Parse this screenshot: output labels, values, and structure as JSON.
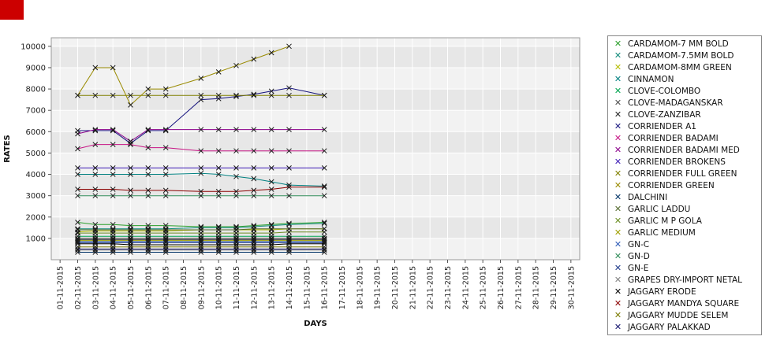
{
  "red_marker": {
    "color": "#cc0000"
  },
  "chart_data": {
    "type": "line",
    "title": "",
    "xlabel": "DAYS",
    "ylabel": "RATES",
    "ylim": [
      0,
      10400
    ],
    "yticks": [
      1000,
      2000,
      3000,
      4000,
      5000,
      6000,
      7000,
      8000,
      9000,
      10000
    ],
    "grid": true,
    "legend_position": "right",
    "marker": "x",
    "x_ticks": [
      "01-11-2015",
      "02-11-2015",
      "03-11-2015",
      "04-11-2015",
      "05-11-2015",
      "06-11-2015",
      "07-11-2015",
      "08-11-2015",
      "09-11-2015",
      "10-11-2015",
      "11-11-2015",
      "12-11-2015",
      "13-11-2015",
      "14-11-2015",
      "15-11-2015",
      "16-11-2015",
      "17-11-2015",
      "18-11-2015",
      "19-11-2015",
      "20-11-2015",
      "21-11-2015",
      "22-11-2015",
      "23-11-2015",
      "24-11-2015",
      "25-11-2015",
      "26-11-2015",
      "27-11-2015",
      "28-11-2015",
      "29-11-2015",
      "30-11-2015"
    ],
    "data_dates": [
      "02-11-2015",
      "03-11-2015",
      "04-11-2015",
      "05-11-2015",
      "06-11-2015",
      "07-11-2015",
      "09-11-2015",
      "10-11-2015",
      "11-11-2015",
      "12-11-2015",
      "13-11-2015",
      "14-11-2015",
      "16-11-2015"
    ],
    "series": [
      {
        "name": "CARDAMOM-7 MM BOLD",
        "color": "#2ca02c",
        "values": [
          1750,
          1650,
          1650,
          1600,
          1600,
          1600,
          1550,
          1550,
          1550,
          1600,
          1650,
          1700,
          1750
        ]
      },
      {
        "name": "CARDAMOM-7.5MM BOLD",
        "color": "#0f8a7a",
        "values": [
          1450,
          1450,
          1450,
          1450,
          1450,
          1450,
          1500,
          1500,
          1500,
          1550,
          1600,
          1650,
          1700
        ]
      },
      {
        "name": "CARDAMOM-8MM GREEN",
        "color": "#b5bd00",
        "values": [
          1300,
          1350,
          1350,
          1350,
          1350,
          1350,
          1400,
          1400,
          1400,
          1400,
          1400,
          1450,
          1450
        ]
      },
      {
        "name": "CINNAMON",
        "color": "#008080",
        "values": [
          4000,
          4000,
          4000,
          4000,
          4000,
          4000,
          4050,
          4000,
          3900,
          3800,
          3650,
          3500,
          3450
        ]
      },
      {
        "name": "CLOVE-COLOMBO",
        "color": "#00a550",
        "values": [
          1100,
          1100,
          1100,
          1100,
          1100,
          1100,
          1100,
          1100,
          1100,
          1100,
          1100,
          1100,
          1100
        ]
      },
      {
        "name": "CLOVE-MADAGANSKAR",
        "color": "#4d4d4d",
        "values": [
          1000,
          1000,
          1000,
          1000,
          1000,
          1000,
          1000,
          1000,
          1000,
          1000,
          1000,
          1000,
          1000
        ]
      },
      {
        "name": "CLOVE-ZANZIBAR",
        "color": "#262626",
        "values": [
          950,
          950,
          950,
          950,
          950,
          950,
          950,
          950,
          950,
          950,
          950,
          950,
          950
        ]
      },
      {
        "name": "CORRIENDER A1",
        "color": "#16137e",
        "values": [
          6050,
          6050,
          6050,
          5450,
          6050,
          6050,
          7500,
          7550,
          7650,
          7750,
          7900,
          8050,
          7700
        ]
      },
      {
        "name": "CORRIENDER BADAMI",
        "color": "#c71585",
        "values": [
          5200,
          5400,
          5400,
          5400,
          5250,
          5250,
          5100,
          5100,
          5100,
          5100,
          5100,
          5100,
          5100
        ]
      },
      {
        "name": "CORRIENDER BADAMI MED",
        "color": "#8b008b",
        "values": [
          5900,
          6100,
          6100,
          5550,
          6100,
          6100,
          6100,
          6100,
          6100,
          6100,
          6100,
          6100,
          6100
        ]
      },
      {
        "name": "CORRIENDER BROKENS",
        "color": "#3c1ab5",
        "values": [
          4300,
          4300,
          4300,
          4300,
          4300,
          4300,
          4300,
          4300,
          4300,
          4300,
          4300,
          4300,
          4300
        ]
      },
      {
        "name": "CORRIENDER FULL GREEN",
        "color": "#808000",
        "values": [
          7700,
          7700,
          7700,
          7700,
          7700,
          7700,
          7700,
          7700,
          7700,
          7700,
          7700,
          7700,
          7700
        ]
      },
      {
        "name": "CORRIENDER GREEN",
        "color": "#998a00",
        "values": [
          7700,
          9000,
          9000,
          7250,
          8000,
          8000,
          8500,
          8800,
          9100,
          9400,
          9700,
          10000,
          null
        ]
      },
      {
        "name": "DALCHINI",
        "color": "#003366",
        "values": [
          350,
          350,
          350,
          350,
          350,
          350,
          350,
          350,
          350,
          350,
          350,
          350,
          350
        ]
      },
      {
        "name": "GARLIC LADDU",
        "color": "#556b2f",
        "values": [
          1400,
          1400,
          1400,
          1400,
          1400,
          1400,
          1400,
          1400,
          1400,
          1450,
          1450,
          1450,
          1450
        ]
      },
      {
        "name": "GARLIC M P GOLA",
        "color": "#6b8e23",
        "values": [
          1250,
          1250,
          1250,
          1250,
          1250,
          1250,
          1250,
          1250,
          1250,
          1250,
          1250,
          1300,
          1300
        ]
      },
      {
        "name": "GARLIC MEDIUM",
        "color": "#a0a000",
        "values": [
          900,
          900,
          900,
          900,
          900,
          900,
          900,
          900,
          900,
          900,
          900,
          900,
          900
        ]
      },
      {
        "name": "GN-C",
        "color": "#2e5cb8",
        "values": [
          850,
          850,
          850,
          850,
          850,
          850,
          850,
          850,
          850,
          850,
          850,
          850,
          850
        ]
      },
      {
        "name": "GN-D",
        "color": "#2e8b57",
        "values": [
          3000,
          3000,
          3000,
          3000,
          3000,
          3000,
          3000,
          3000,
          3000,
          3000,
          3000,
          3000,
          3000
        ]
      },
      {
        "name": "GN-E",
        "color": "#1e3a8a",
        "values": [
          800,
          800,
          800,
          800,
          800,
          800,
          800,
          800,
          800,
          800,
          800,
          800,
          800
        ]
      },
      {
        "name": "GRAPES DRY-IMPORT NETAL",
        "color": "#808080",
        "values": [
          450,
          450,
          450,
          450,
          450,
          450,
          450,
          450,
          450,
          450,
          450,
          450,
          450
        ]
      },
      {
        "name": "JAGGARY ERODE",
        "color": "#000000",
        "values": [
          750,
          750,
          750,
          700,
          700,
          700,
          700,
          700,
          700,
          700,
          700,
          750,
          750
        ]
      },
      {
        "name": "JAGGARY MANDYA SQUARE",
        "color": "#8b0000",
        "values": [
          3300,
          3300,
          3300,
          3250,
          3250,
          3250,
          3200,
          3200,
          3200,
          3250,
          3300,
          3400,
          3400
        ]
      },
      {
        "name": "JAGGARY MUDDE SELEM",
        "color": "#7a7a00",
        "values": [
          600,
          600,
          600,
          600,
          600,
          600,
          600,
          600,
          600,
          600,
          600,
          600,
          600
        ]
      },
      {
        "name": "JAGGARY PALAKKAD",
        "color": "#13136e",
        "values": [
          500,
          500,
          500,
          500,
          500,
          500,
          500,
          500,
          500,
          500,
          500,
          500,
          500
        ]
      }
    ]
  }
}
